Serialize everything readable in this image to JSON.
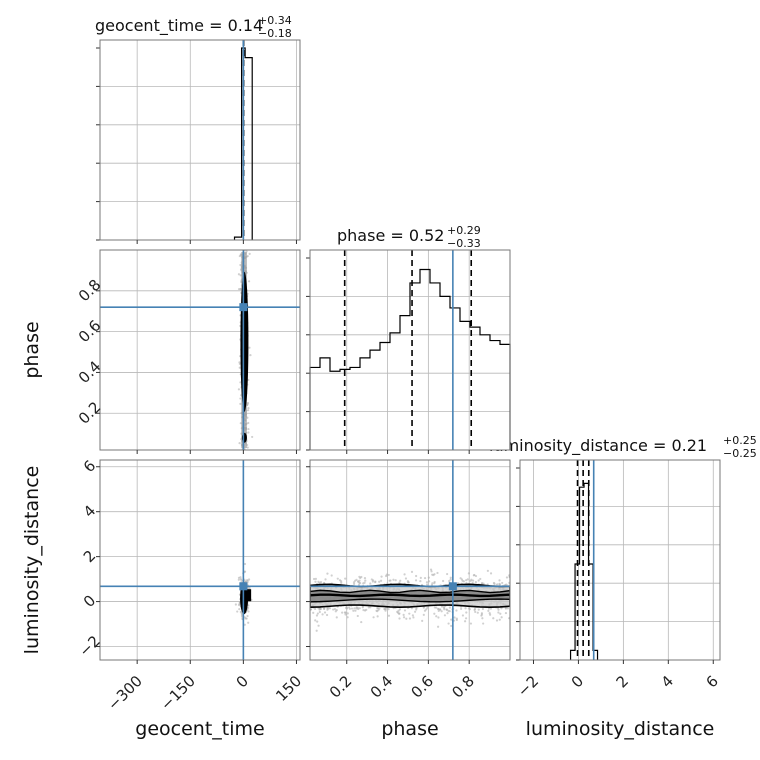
{
  "chart_data": {
    "type": "corner",
    "parameters": [
      "geocent_time",
      "phase",
      "luminosity_distance"
    ],
    "titles": [
      {
        "param": "geocent_time",
        "prefix": "geocent_time = ",
        "median": "0.14",
        "upper": "+0.34",
        "lower": "−0.18"
      },
      {
        "param": "phase",
        "prefix": "phase = ",
        "median": "0.52",
        "upper": "+0.29",
        "lower": "−0.33"
      },
      {
        "param": "luminosity_distance",
        "prefix": "luminosity_distance = ",
        "median": "0.21",
        "upper": "+0.25",
        "lower": "−0.25"
      }
    ],
    "ranges": {
      "geocent_time": [
        -405,
        160
      ],
      "phase": [
        0.02,
        1.0
      ],
      "luminosity_distance": [
        -2.6,
        6.3
      ]
    },
    "ticks": {
      "geocent_time": {
        "values": [
          -300,
          -150,
          0,
          150
        ],
        "labels": [
          "−300",
          "−150",
          "0",
          "150"
        ]
      },
      "phase": {
        "values": [
          0.2,
          0.4,
          0.6,
          0.8
        ],
        "labels": [
          "0.2",
          "0.4",
          "0.6",
          "0.8"
        ]
      },
      "luminosity_distance": {
        "values": [
          -2,
          0,
          2,
          4,
          6
        ],
        "labels": [
          "−2",
          "0",
          "2",
          "4",
          "6"
        ]
      }
    },
    "truths": {
      "geocent_time": 0.0,
      "phase": 0.72,
      "luminosity_distance": 0.68
    },
    "truth_color": "#4682b4",
    "quantile_lines": {
      "geocent_time": [
        -0.04,
        0.14,
        0.48
      ],
      "phase": [
        0.19,
        0.52,
        0.81
      ],
      "luminosity_distance": [
        -0.04,
        0.21,
        0.46
      ]
    },
    "histograms": {
      "geocent_time": {
        "edges": [
          -25,
          -5,
          5,
          25
        ],
        "heights": [
          0.015,
          1.0,
          0.95
        ]
      },
      "phase": {
        "edges": [
          0.02,
          0.069,
          0.118,
          0.167,
          0.216,
          0.265,
          0.314,
          0.363,
          0.412,
          0.461,
          0.51,
          0.559,
          0.608,
          0.657,
          0.706,
          0.755,
          0.804,
          0.853,
          0.902,
          0.951,
          1.0
        ],
        "heights": [
          0.43,
          0.48,
          0.41,
          0.42,
          0.43,
          0.48,
          0.52,
          0.56,
          0.61,
          0.7,
          0.87,
          0.94,
          0.87,
          0.8,
          0.74,
          0.67,
          0.64,
          0.6,
          0.57,
          0.55
        ]
      },
      "luminosity_distance": {
        "edges": [
          -0.35,
          -0.15,
          0.05,
          0.25,
          0.45,
          0.65,
          0.85
        ],
        "heights": [
          0.05,
          0.5,
          0.9,
          0.92,
          0.5,
          0.05
        ]
      }
    },
    "grid": true,
    "colors": {
      "hist": "#000000",
      "quantile": "#000000",
      "scatter": "#b0b0b0",
      "contour": "#000000",
      "grid": "#b8b8b8"
    }
  }
}
